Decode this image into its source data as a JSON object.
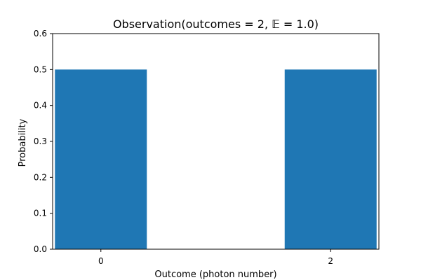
{
  "chart_data": {
    "type": "bar",
    "title": "Observation(outcomes = 2,  𝔼 = 1.0)",
    "xlabel": "Outcome (photon number)",
    "ylabel": "Probability",
    "categories": [
      "0",
      "2"
    ],
    "x": [
      0,
      2
    ],
    "values": [
      0.5,
      0.5
    ],
    "xlim": [
      -0.42,
      2.42
    ],
    "ylim": [
      0.0,
      0.6
    ],
    "yticks": [
      0.0,
      0.1,
      0.2,
      0.3,
      0.4,
      0.5,
      0.6
    ],
    "ytick_labels": [
      "0.0",
      "0.1",
      "0.2",
      "0.3",
      "0.4",
      "0.5",
      "0.6"
    ],
    "bar_width": 0.8,
    "bar_color": "#1f77b4",
    "grid": false,
    "legend": "none"
  }
}
